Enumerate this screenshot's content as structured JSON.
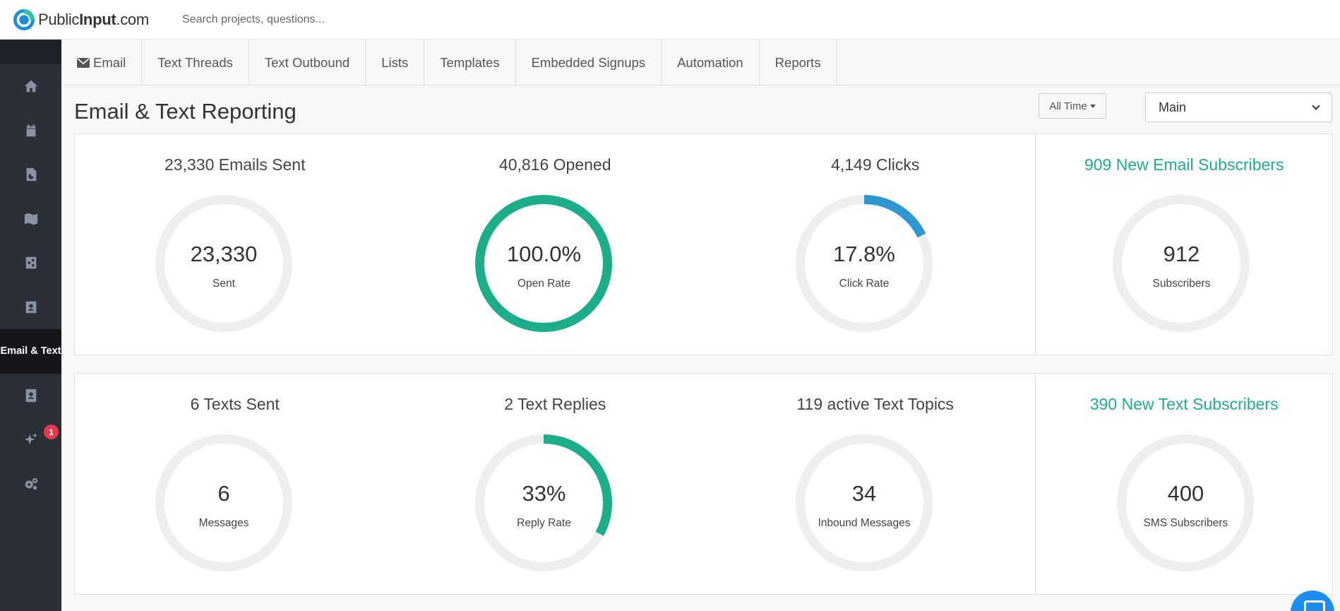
{
  "header": {
    "logo_text_light": "Public",
    "logo_text_bold": "Input",
    "logo_text_suffix": ".com",
    "search_placeholder": "Search projects, questions..."
  },
  "sidebar": {
    "active_label": "Email & Text",
    "notification_count": "1",
    "items": [
      "home-icon",
      "calendar-icon",
      "document-chart-icon",
      "map-icon",
      "share-icon",
      "contact-card-icon",
      "email-text",
      "address-book-icon",
      "sparkles-icon",
      "cogs-icon"
    ]
  },
  "tabs": [
    "Email",
    "Text Threads",
    "Text Outbound",
    "Lists",
    "Templates",
    "Embedded Signups",
    "Automation",
    "Reports"
  ],
  "page": {
    "title": "Email & Text Reporting",
    "time_filter": "All Time",
    "list_select": "Main"
  },
  "colors": {
    "green": "#1cae8a",
    "blue": "#2e96d1",
    "track": "#eeeeee"
  },
  "stats_row1": [
    {
      "title": "23,330 Emails Sent",
      "value": "23,330",
      "label": "Sent",
      "fraction": 0,
      "color": "#1cae8a",
      "title_green": false
    },
    {
      "title": "40,816 Opened",
      "value": "100.0%",
      "label": "Open Rate",
      "fraction": 1.0,
      "color": "#1cae8a",
      "title_green": false
    },
    {
      "title": "4,149 Clicks",
      "value": "17.8%",
      "label": "Click Rate",
      "fraction": 0.178,
      "color": "#2e96d1",
      "title_green": false
    },
    {
      "title": "909 New Email Subscribers",
      "value": "912",
      "label": "Subscribers",
      "fraction": 0,
      "color": "#1cae8a",
      "title_green": true
    }
  ],
  "stats_row2": [
    {
      "title": "6 Texts Sent",
      "value": "6",
      "label": "Messages",
      "fraction": 0,
      "color": "#1cae8a",
      "title_green": false
    },
    {
      "title": "2 Text Replies",
      "value": "33%",
      "label": "Reply Rate",
      "fraction": 0.33,
      "color": "#1cae8a",
      "title_green": false
    },
    {
      "title": "119 active Text Topics",
      "value": "34",
      "label": "Inbound Messages",
      "fraction": 0,
      "color": "#1cae8a",
      "title_green": false
    },
    {
      "title": "390 New Text Subscribers",
      "value": "400",
      "label": "SMS Subscribers",
      "fraction": 0,
      "color": "#1cae8a",
      "title_green": true
    }
  ]
}
